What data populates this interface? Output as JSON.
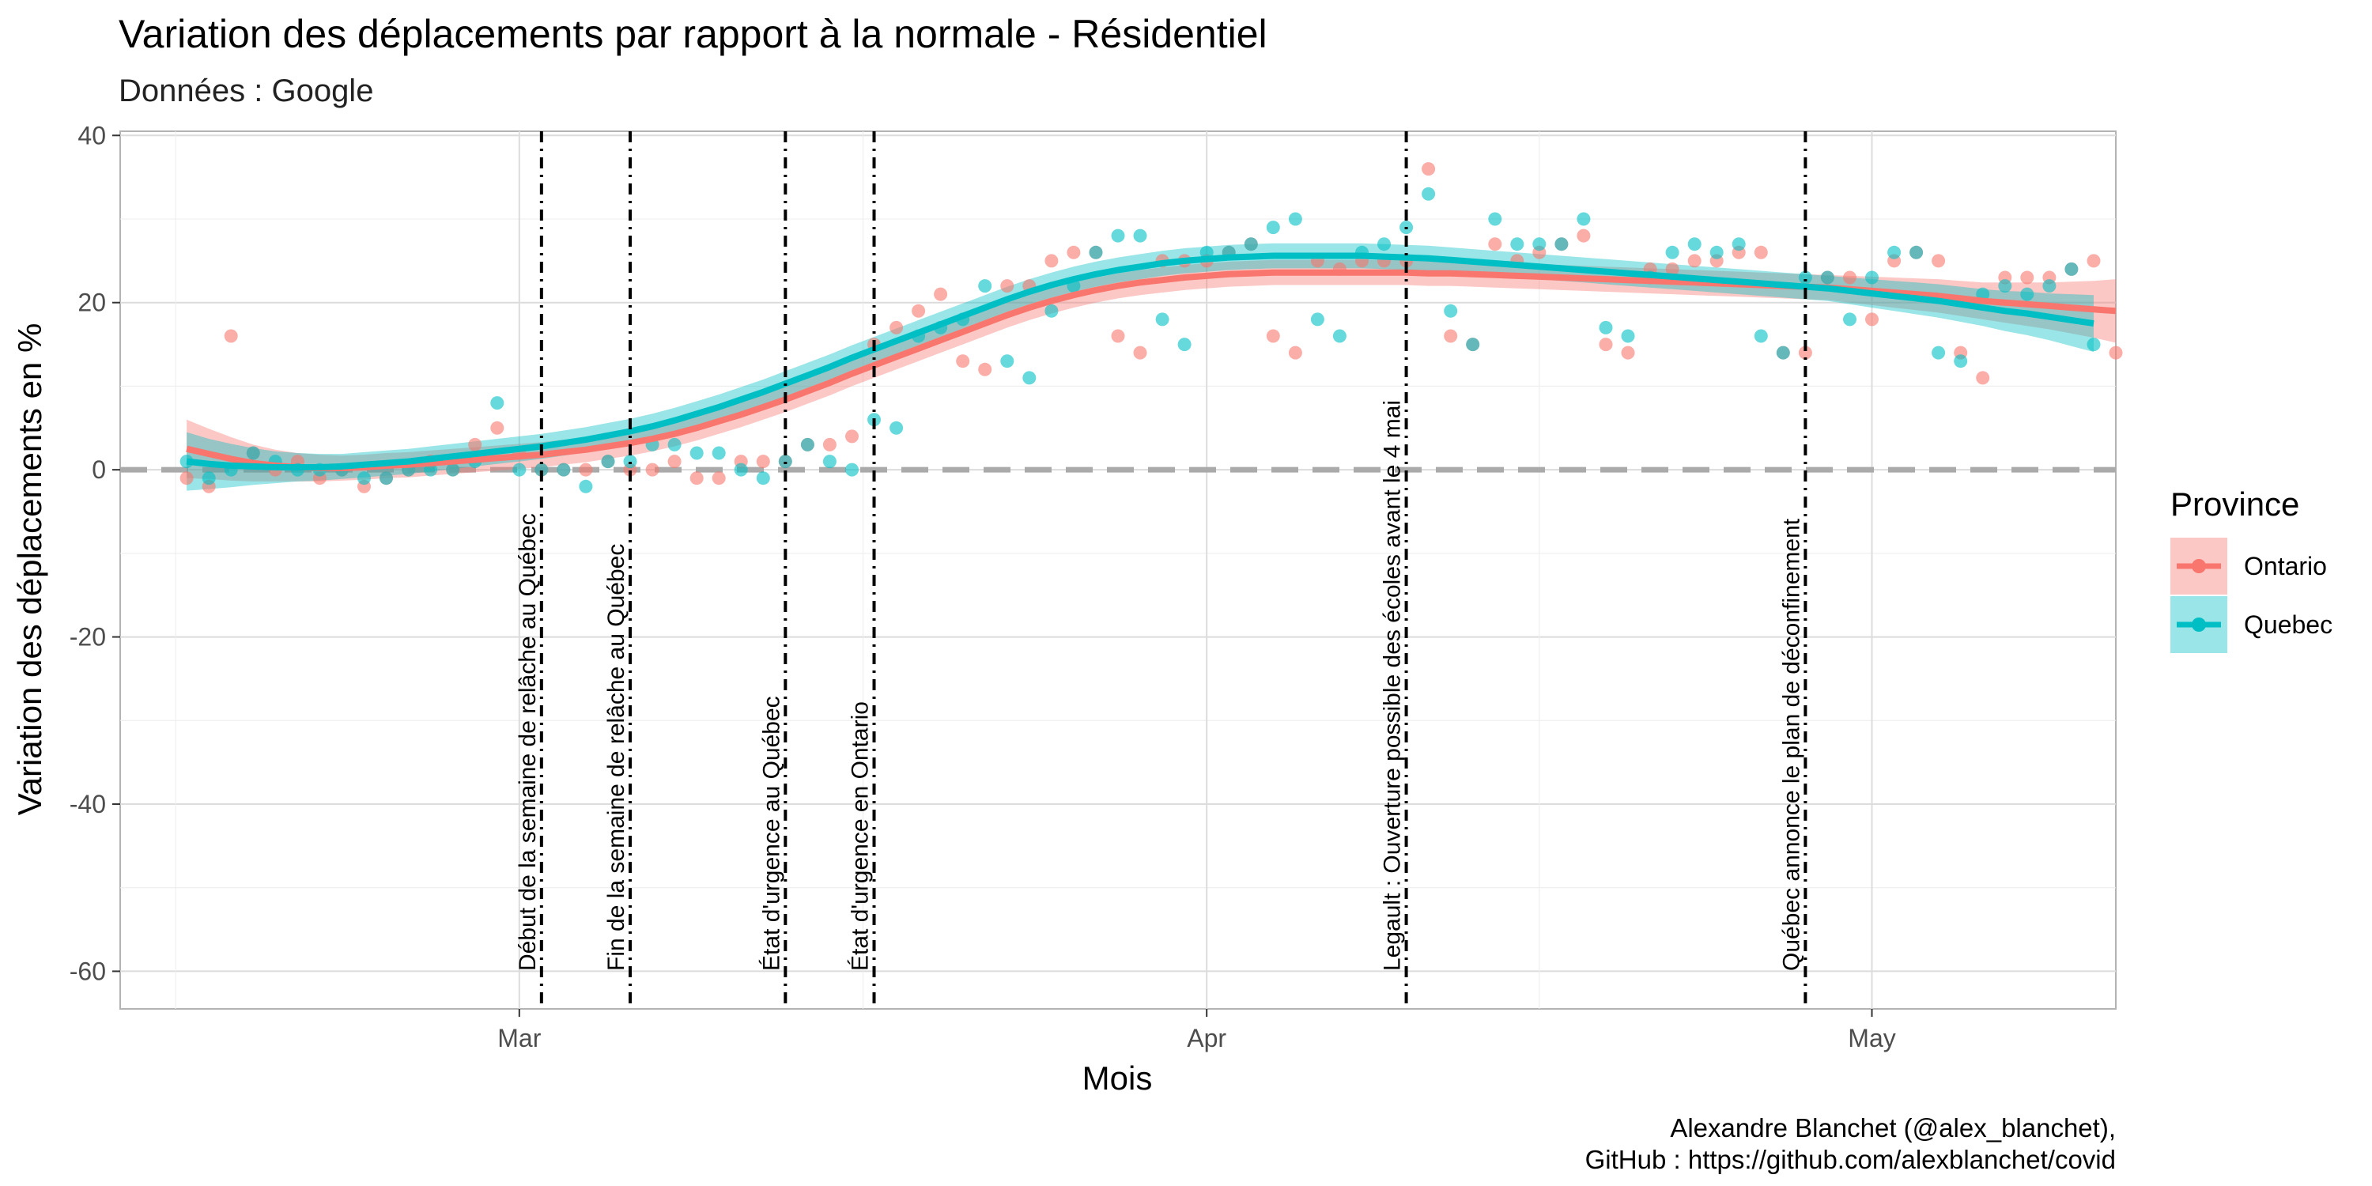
{
  "chart_data": {
    "type": "scatter",
    "title": "Variation des déplacements par rapport à la normale - Résidentiel",
    "subtitle": "Données : Google",
    "xlabel": "Mois",
    "ylabel": "Variation des déplacements en %",
    "caption_line1": "Alexandre Blanchet (@alex_blanchet),",
    "caption_line2": "GitHub : https://github.com/alexblanchet/covid",
    "x_start": "2020-02-15",
    "x_end": "2020-05-09",
    "xlim": [
      "2020-02-12",
      "2020-05-12"
    ],
    "ylim": [
      -64.5,
      40.5
    ],
    "y_ticks": [
      -60,
      -40,
      -20,
      0,
      20,
      40
    ],
    "y_tick_labels": [
      "-60",
      "-40",
      "-20",
      "0",
      "20",
      "40"
    ],
    "x_ticks": [
      "2020-03-01",
      "2020-04-01",
      "2020-05-01"
    ],
    "x_tick_labels": [
      "Mar",
      "Apr",
      "May"
    ],
    "grid": true,
    "reference_line_y": 0,
    "legend": {
      "title": "Province",
      "position": "right",
      "entries": [
        "Ontario",
        "Quebec"
      ]
    },
    "colors": {
      "Ontario": "#F8766D",
      "Quebec": "#00BFC4",
      "reference": "#aaaaaa",
      "event_line": "#000000"
    },
    "series": [
      {
        "name": "Ontario",
        "values": [
          -1,
          -2,
          16,
          2,
          0,
          1,
          -1,
          0,
          -2,
          -1,
          0,
          1,
          0,
          3,
          5,
          2,
          0,
          0,
          0,
          1,
          0,
          0,
          1,
          -1,
          -1,
          1,
          1,
          1,
          3,
          3,
          4,
          15,
          17,
          19,
          21,
          13,
          12,
          22,
          22,
          25,
          26,
          26,
          16,
          14,
          25,
          25,
          25,
          26,
          27,
          16,
          14,
          25,
          24,
          25,
          25,
          25,
          36,
          16,
          15,
          27,
          25,
          26,
          27,
          28,
          15,
          14,
          24,
          24,
          25,
          25,
          26,
          26,
          14,
          14,
          23,
          23,
          18,
          25,
          26,
          25,
          14,
          11,
          23,
          23,
          23,
          24,
          25,
          14
        ],
        "smooth": [
          2.5,
          1.9,
          1.3,
          0.8,
          0.5,
          0.3,
          0.2,
          0.2,
          0.3,
          0.5,
          0.6,
          0.8,
          1.0,
          1.2,
          1.4,
          1.6,
          1.8,
          2.1,
          2.4,
          2.8,
          3.2,
          3.7,
          4.3,
          5.0,
          5.8,
          6.6,
          7.5,
          8.4,
          9.4,
          10.4,
          11.5,
          12.5,
          13.5,
          14.5,
          15.5,
          16.5,
          17.5,
          18.5,
          19.4,
          20.2,
          20.9,
          21.5,
          22.0,
          22.4,
          22.7,
          23.0,
          23.2,
          23.4,
          23.5,
          23.6,
          23.6,
          23.6,
          23.6,
          23.6,
          23.6,
          23.6,
          23.5,
          23.5,
          23.4,
          23.3,
          23.2,
          23.1,
          23.0,
          22.9,
          22.8,
          22.7,
          22.6,
          22.5,
          22.4,
          22.3,
          22.2,
          22.1,
          22.0,
          21.9,
          21.8,
          21.6,
          21.4,
          21.2,
          21.0,
          20.8,
          20.5,
          20.2,
          20.0,
          19.8,
          19.6,
          19.4,
          19.2,
          19.0
        ],
        "band_halfwidth": [
          3.5,
          3.0,
          2.6,
          2.2,
          1.9,
          1.7,
          1.6,
          1.5,
          1.5,
          1.5,
          1.5,
          1.5,
          1.5,
          1.5,
          1.5,
          1.5,
          1.5,
          1.5,
          1.5,
          1.5,
          1.5,
          1.5,
          1.5,
          1.5,
          1.5,
          1.5,
          1.5,
          1.5,
          1.5,
          1.5,
          1.5,
          1.5,
          1.5,
          1.5,
          1.5,
          1.5,
          1.5,
          1.5,
          1.5,
          1.5,
          1.5,
          1.5,
          1.5,
          1.5,
          1.5,
          1.5,
          1.5,
          1.5,
          1.5,
          1.5,
          1.5,
          1.5,
          1.5,
          1.5,
          1.5,
          1.5,
          1.5,
          1.5,
          1.5,
          1.5,
          1.5,
          1.5,
          1.5,
          1.5,
          1.5,
          1.5,
          1.5,
          1.5,
          1.5,
          1.5,
          1.5,
          1.5,
          1.5,
          1.5,
          1.5,
          1.6,
          1.7,
          1.8,
          1.9,
          2.0,
          2.1,
          2.2,
          2.4,
          2.6,
          2.8,
          3.1,
          3.4,
          3.8
        ]
      },
      {
        "name": "Quebec",
        "values": [
          1,
          -1,
          0,
          2,
          1,
          0,
          0,
          0,
          -1,
          -1,
          0,
          0,
          0,
          1,
          8,
          0,
          0,
          0,
          -2,
          1,
          1,
          3,
          3,
          2,
          2,
          0,
          -1,
          1,
          3,
          1,
          0,
          6,
          5,
          16,
          17,
          18,
          22,
          13,
          11,
          19,
          22,
          26,
          28,
          28,
          18,
          15,
          26,
          26,
          27,
          29,
          30,
          18,
          16,
          26,
          27,
          29,
          33,
          19,
          15,
          30,
          27,
          27,
          27,
          30,
          17,
          16,
          23,
          26,
          27,
          26,
          27,
          16,
          14,
          23,
          23,
          18,
          23,
          26,
          26,
          14,
          13,
          21,
          22,
          21,
          22,
          24,
          15
        ],
        "smooth": [
          1.0,
          0.7,
          0.5,
          0.4,
          0.3,
          0.3,
          0.3,
          0.4,
          0.6,
          0.8,
          1.0,
          1.3,
          1.6,
          1.9,
          2.2,
          2.5,
          2.8,
          3.2,
          3.6,
          4.1,
          4.6,
          5.2,
          5.9,
          6.7,
          7.5,
          8.4,
          9.3,
          10.3,
          11.3,
          12.3,
          13.4,
          14.4,
          15.4,
          16.4,
          17.4,
          18.4,
          19.4,
          20.4,
          21.3,
          22.1,
          22.8,
          23.4,
          23.9,
          24.3,
          24.7,
          25.0,
          25.2,
          25.4,
          25.5,
          25.6,
          25.6,
          25.6,
          25.6,
          25.6,
          25.5,
          25.4,
          25.3,
          25.1,
          24.9,
          24.7,
          24.5,
          24.3,
          24.1,
          23.9,
          23.7,
          23.5,
          23.3,
          23.1,
          22.9,
          22.7,
          22.5,
          22.3,
          22.1,
          21.9,
          21.7,
          21.4,
          21.1,
          20.8,
          20.5,
          20.2,
          19.8,
          19.4,
          19.0,
          18.7,
          18.3,
          17.9,
          17.5
        ],
        "band_halfwidth": [
          3.5,
          3.0,
          2.6,
          2.2,
          1.9,
          1.7,
          1.6,
          1.5,
          1.5,
          1.5,
          1.5,
          1.5,
          1.5,
          1.5,
          1.5,
          1.5,
          1.5,
          1.5,
          1.5,
          1.5,
          1.5,
          1.5,
          1.5,
          1.5,
          1.5,
          1.5,
          1.5,
          1.5,
          1.5,
          1.5,
          1.5,
          1.5,
          1.5,
          1.5,
          1.5,
          1.5,
          1.5,
          1.5,
          1.5,
          1.5,
          1.5,
          1.5,
          1.5,
          1.5,
          1.5,
          1.5,
          1.5,
          1.5,
          1.5,
          1.5,
          1.5,
          1.5,
          1.5,
          1.5,
          1.5,
          1.5,
          1.5,
          1.5,
          1.5,
          1.5,
          1.5,
          1.5,
          1.5,
          1.5,
          1.5,
          1.5,
          1.5,
          1.5,
          1.5,
          1.5,
          1.5,
          1.5,
          1.5,
          1.5,
          1.5,
          1.6,
          1.7,
          1.8,
          1.9,
          2.0,
          2.1,
          2.2,
          2.4,
          2.6,
          2.8,
          3.1,
          3.4
        ]
      }
    ],
    "annotations": [
      {
        "date": "2020-03-02",
        "label": "Début de la semaine de relâche au Québec"
      },
      {
        "date": "2020-03-06",
        "label": "Fin de la semaine de relâche au Québec"
      },
      {
        "date": "2020-03-13",
        "label": "État d'urgence au Québec"
      },
      {
        "date": "2020-03-17",
        "label": "État d'urgence en Ontario"
      },
      {
        "date": "2020-04-10",
        "label": "Legault : Ouverture possible des écoles avant le 4 mai"
      },
      {
        "date": "2020-04-28",
        "label": "Québec annonce le plan de déconfinement"
      }
    ]
  }
}
